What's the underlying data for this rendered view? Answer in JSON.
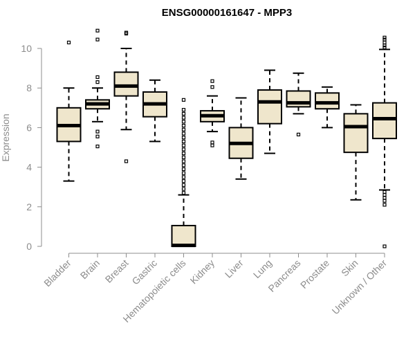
{
  "chart_data": {
    "type": "boxplot",
    "title": "ENSG00000161647 - MPP3",
    "xlabel": "",
    "ylabel": "Expression",
    "ylim": [
      0,
      11
    ],
    "yticks": [
      0,
      2,
      4,
      6,
      8,
      10
    ],
    "categories": [
      "Bladder",
      "Brain",
      "Breast",
      "Gastric",
      "Hematopoietic cells",
      "Kidney",
      "Liver",
      "Lung",
      "Pancreas",
      "Prostate",
      "Skin",
      "Unknown / Other"
    ],
    "boxes": [
      {
        "name": "Bladder",
        "whisker_low": 3.3,
        "q1": 5.3,
        "median": 6.1,
        "q3": 7.0,
        "whisker_high": 8.0,
        "outliers": [
          10.3
        ]
      },
      {
        "name": "Brain",
        "whisker_low": 6.3,
        "q1": 6.95,
        "median": 7.2,
        "q3": 7.4,
        "whisker_high": 8.0,
        "outliers": [
          5.05,
          5.55,
          5.8,
          8.3,
          8.55,
          10.45,
          10.9
        ]
      },
      {
        "name": "Breast",
        "whisker_low": 5.9,
        "q1": 7.6,
        "median": 8.1,
        "q3": 8.8,
        "whisker_high": 10.0,
        "outliers": [
          4.3,
          10.75,
          10.8
        ]
      },
      {
        "name": "Gastric",
        "whisker_low": 5.3,
        "q1": 6.55,
        "median": 7.2,
        "q3": 7.8,
        "whisker_high": 8.4,
        "outliers": []
      },
      {
        "name": "Hematopoietic cells",
        "whisker_low": 0.0,
        "q1": 0.0,
        "median": 0.05,
        "q3": 1.05,
        "whisker_high": 2.6,
        "outliers": [
          2.7,
          2.9,
          3.1,
          3.3,
          3.5,
          3.7,
          3.9,
          4.1,
          4.3,
          4.5,
          4.7,
          4.9,
          5.1,
          5.3,
          5.5,
          5.7,
          5.9,
          6.1,
          6.3,
          6.5,
          6.7,
          6.9,
          7.4
        ]
      },
      {
        "name": "Kidney",
        "whisker_low": 5.8,
        "q1": 6.3,
        "median": 6.6,
        "q3": 6.85,
        "whisker_high": 7.6,
        "outliers": [
          5.1,
          5.25,
          8.05,
          8.35
        ]
      },
      {
        "name": "Liver",
        "whisker_low": 3.4,
        "q1": 4.45,
        "median": 5.2,
        "q3": 6.0,
        "whisker_high": 7.5,
        "outliers": []
      },
      {
        "name": "Lung",
        "whisker_low": 4.7,
        "q1": 6.2,
        "median": 7.3,
        "q3": 7.9,
        "whisker_high": 8.9,
        "outliers": []
      },
      {
        "name": "Pancreas",
        "whisker_low": 6.7,
        "q1": 7.05,
        "median": 7.25,
        "q3": 7.85,
        "whisker_high": 8.75,
        "outliers": [
          5.65
        ]
      },
      {
        "name": "Prostate",
        "whisker_low": 6.0,
        "q1": 6.95,
        "median": 7.25,
        "q3": 7.75,
        "whisker_high": 8.05,
        "outliers": []
      },
      {
        "name": "Skin",
        "whisker_low": 2.35,
        "q1": 4.75,
        "median": 6.05,
        "q3": 6.7,
        "whisker_high": 7.15,
        "outliers": []
      },
      {
        "name": "Unknown / Other",
        "whisker_low": 2.85,
        "q1": 5.45,
        "median": 6.45,
        "q3": 7.25,
        "whisker_high": 9.95,
        "outliers": [
          0.0,
          2.1,
          2.3,
          2.45,
          2.6,
          2.75,
          10.05,
          10.15,
          10.3,
          10.45,
          10.55
        ]
      }
    ]
  }
}
